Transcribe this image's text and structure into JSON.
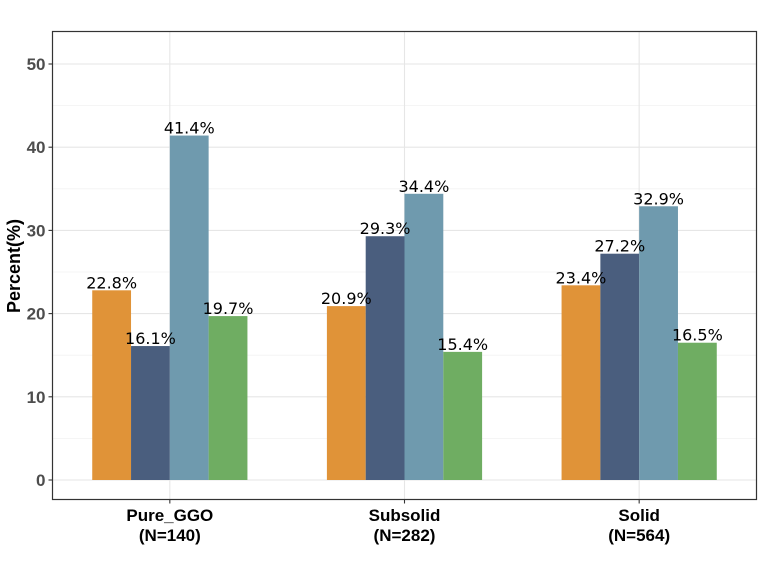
{
  "chart_data": {
    "type": "bar",
    "ylabel": "Percent(%)",
    "xlabel": "",
    "ylim": [
      0,
      54
    ],
    "yticks": [
      0,
      10,
      20,
      30,
      40,
      50
    ],
    "grid": true,
    "legend": "none",
    "categories": [
      {
        "name": "Pure_GGO",
        "count": "(N=140)"
      },
      {
        "name": "Subsolid",
        "count": "(N=282)"
      },
      {
        "name": "Solid",
        "count": "(N=564)"
      }
    ],
    "series": [
      {
        "color": "#e09338",
        "values": [
          22.8,
          20.9,
          23.4
        ],
        "labels": [
          "22.8%",
          "20.9%",
          "23.4%"
        ]
      },
      {
        "color": "#4a5e7e",
        "values": [
          16.1,
          29.3,
          27.2
        ],
        "labels": [
          "16.1%",
          "29.3%",
          "27.2%"
        ]
      },
      {
        "color": "#6f9aae",
        "values": [
          41.4,
          34.4,
          32.9
        ],
        "labels": [
          "41.4%",
          "34.4%",
          "32.9%"
        ]
      },
      {
        "color": "#6fad62",
        "values": [
          19.7,
          15.4,
          16.5
        ],
        "labels": [
          "19.7%",
          "15.4%",
          "16.5%"
        ]
      }
    ]
  }
}
